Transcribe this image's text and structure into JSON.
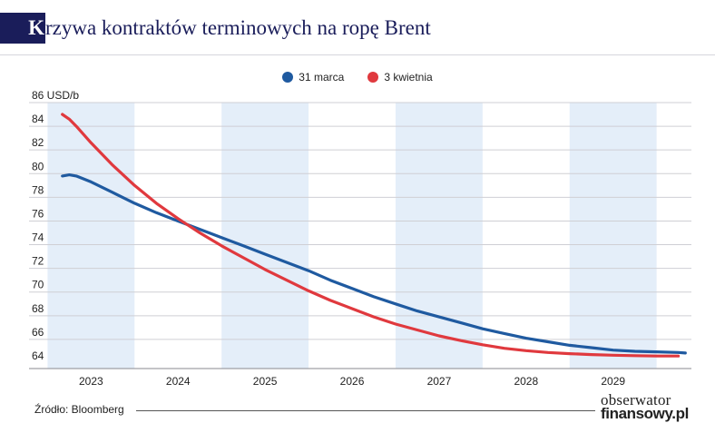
{
  "title": {
    "initial": "K",
    "rest": "rzywa kontraktów terminowych na ropę Brent"
  },
  "legend": [
    {
      "label": "31 marca",
      "color": "#1f5aa0"
    },
    {
      "label": "3 kwietnia",
      "color": "#e0393e"
    }
  ],
  "source": "Źródło: Bloomberg",
  "brand": {
    "line1": "obserwator",
    "line2": "finansowy.pl"
  },
  "chart_data": {
    "type": "line",
    "title": "Krzywa kontraktów terminowych na ropę Brent",
    "ylabel": "USD/b",
    "ylim": [
      64,
      86
    ],
    "yticks": [
      "64",
      "66",
      "68",
      "70",
      "72",
      "74",
      "76",
      "78",
      "80",
      "82",
      "84",
      "86"
    ],
    "ytick_top_label": "86 USD/b",
    "xlim": [
      2022.6,
      2029.9
    ],
    "xtick_labels": [
      "2023",
      "2024",
      "2025",
      "2026",
      "2027",
      "2028",
      "2029"
    ],
    "shaded_years": [
      2023,
      2025,
      2027,
      2029
    ],
    "grid": true,
    "series": [
      {
        "name": "31 marca",
        "color": "#1f5aa0",
        "x": [
          2022.67,
          2022.75,
          2022.83,
          2023.0,
          2023.25,
          2023.5,
          2023.75,
          2024.0,
          2024.25,
          2024.5,
          2024.75,
          2025.0,
          2025.25,
          2025.5,
          2025.75,
          2026.0,
          2026.25,
          2026.5,
          2026.75,
          2027.0,
          2027.25,
          2027.5,
          2027.75,
          2028.0,
          2028.25,
          2028.5,
          2028.75,
          2029.0,
          2029.25,
          2029.5,
          2029.75,
          2029.83
        ],
        "values": [
          79.8,
          79.9,
          79.8,
          79.3,
          78.4,
          77.5,
          76.7,
          76.0,
          75.3,
          74.6,
          73.9,
          73.2,
          72.5,
          71.8,
          71.0,
          70.3,
          69.6,
          69.0,
          68.4,
          67.9,
          67.4,
          66.9,
          66.5,
          66.1,
          65.8,
          65.5,
          65.3,
          65.1,
          65.0,
          64.95,
          64.9,
          64.85
        ]
      },
      {
        "name": "3 kwietnia",
        "color": "#e0393e",
        "x": [
          2022.67,
          2022.75,
          2022.83,
          2023.0,
          2023.25,
          2023.5,
          2023.75,
          2024.0,
          2024.25,
          2024.5,
          2024.75,
          2025.0,
          2025.25,
          2025.5,
          2025.75,
          2026.0,
          2026.25,
          2026.5,
          2026.75,
          2027.0,
          2027.25,
          2027.5,
          2027.75,
          2028.0,
          2028.25,
          2028.5,
          2028.75,
          2029.0,
          2029.25,
          2029.5,
          2029.75
        ],
        "values": [
          85.0,
          84.6,
          84.0,
          82.6,
          80.7,
          79.0,
          77.5,
          76.2,
          75.0,
          73.9,
          72.9,
          71.9,
          71.0,
          70.1,
          69.3,
          68.6,
          67.9,
          67.3,
          66.8,
          66.3,
          65.9,
          65.55,
          65.25,
          65.05,
          64.9,
          64.8,
          64.72,
          64.67,
          64.63,
          64.6,
          64.6
        ]
      }
    ]
  }
}
